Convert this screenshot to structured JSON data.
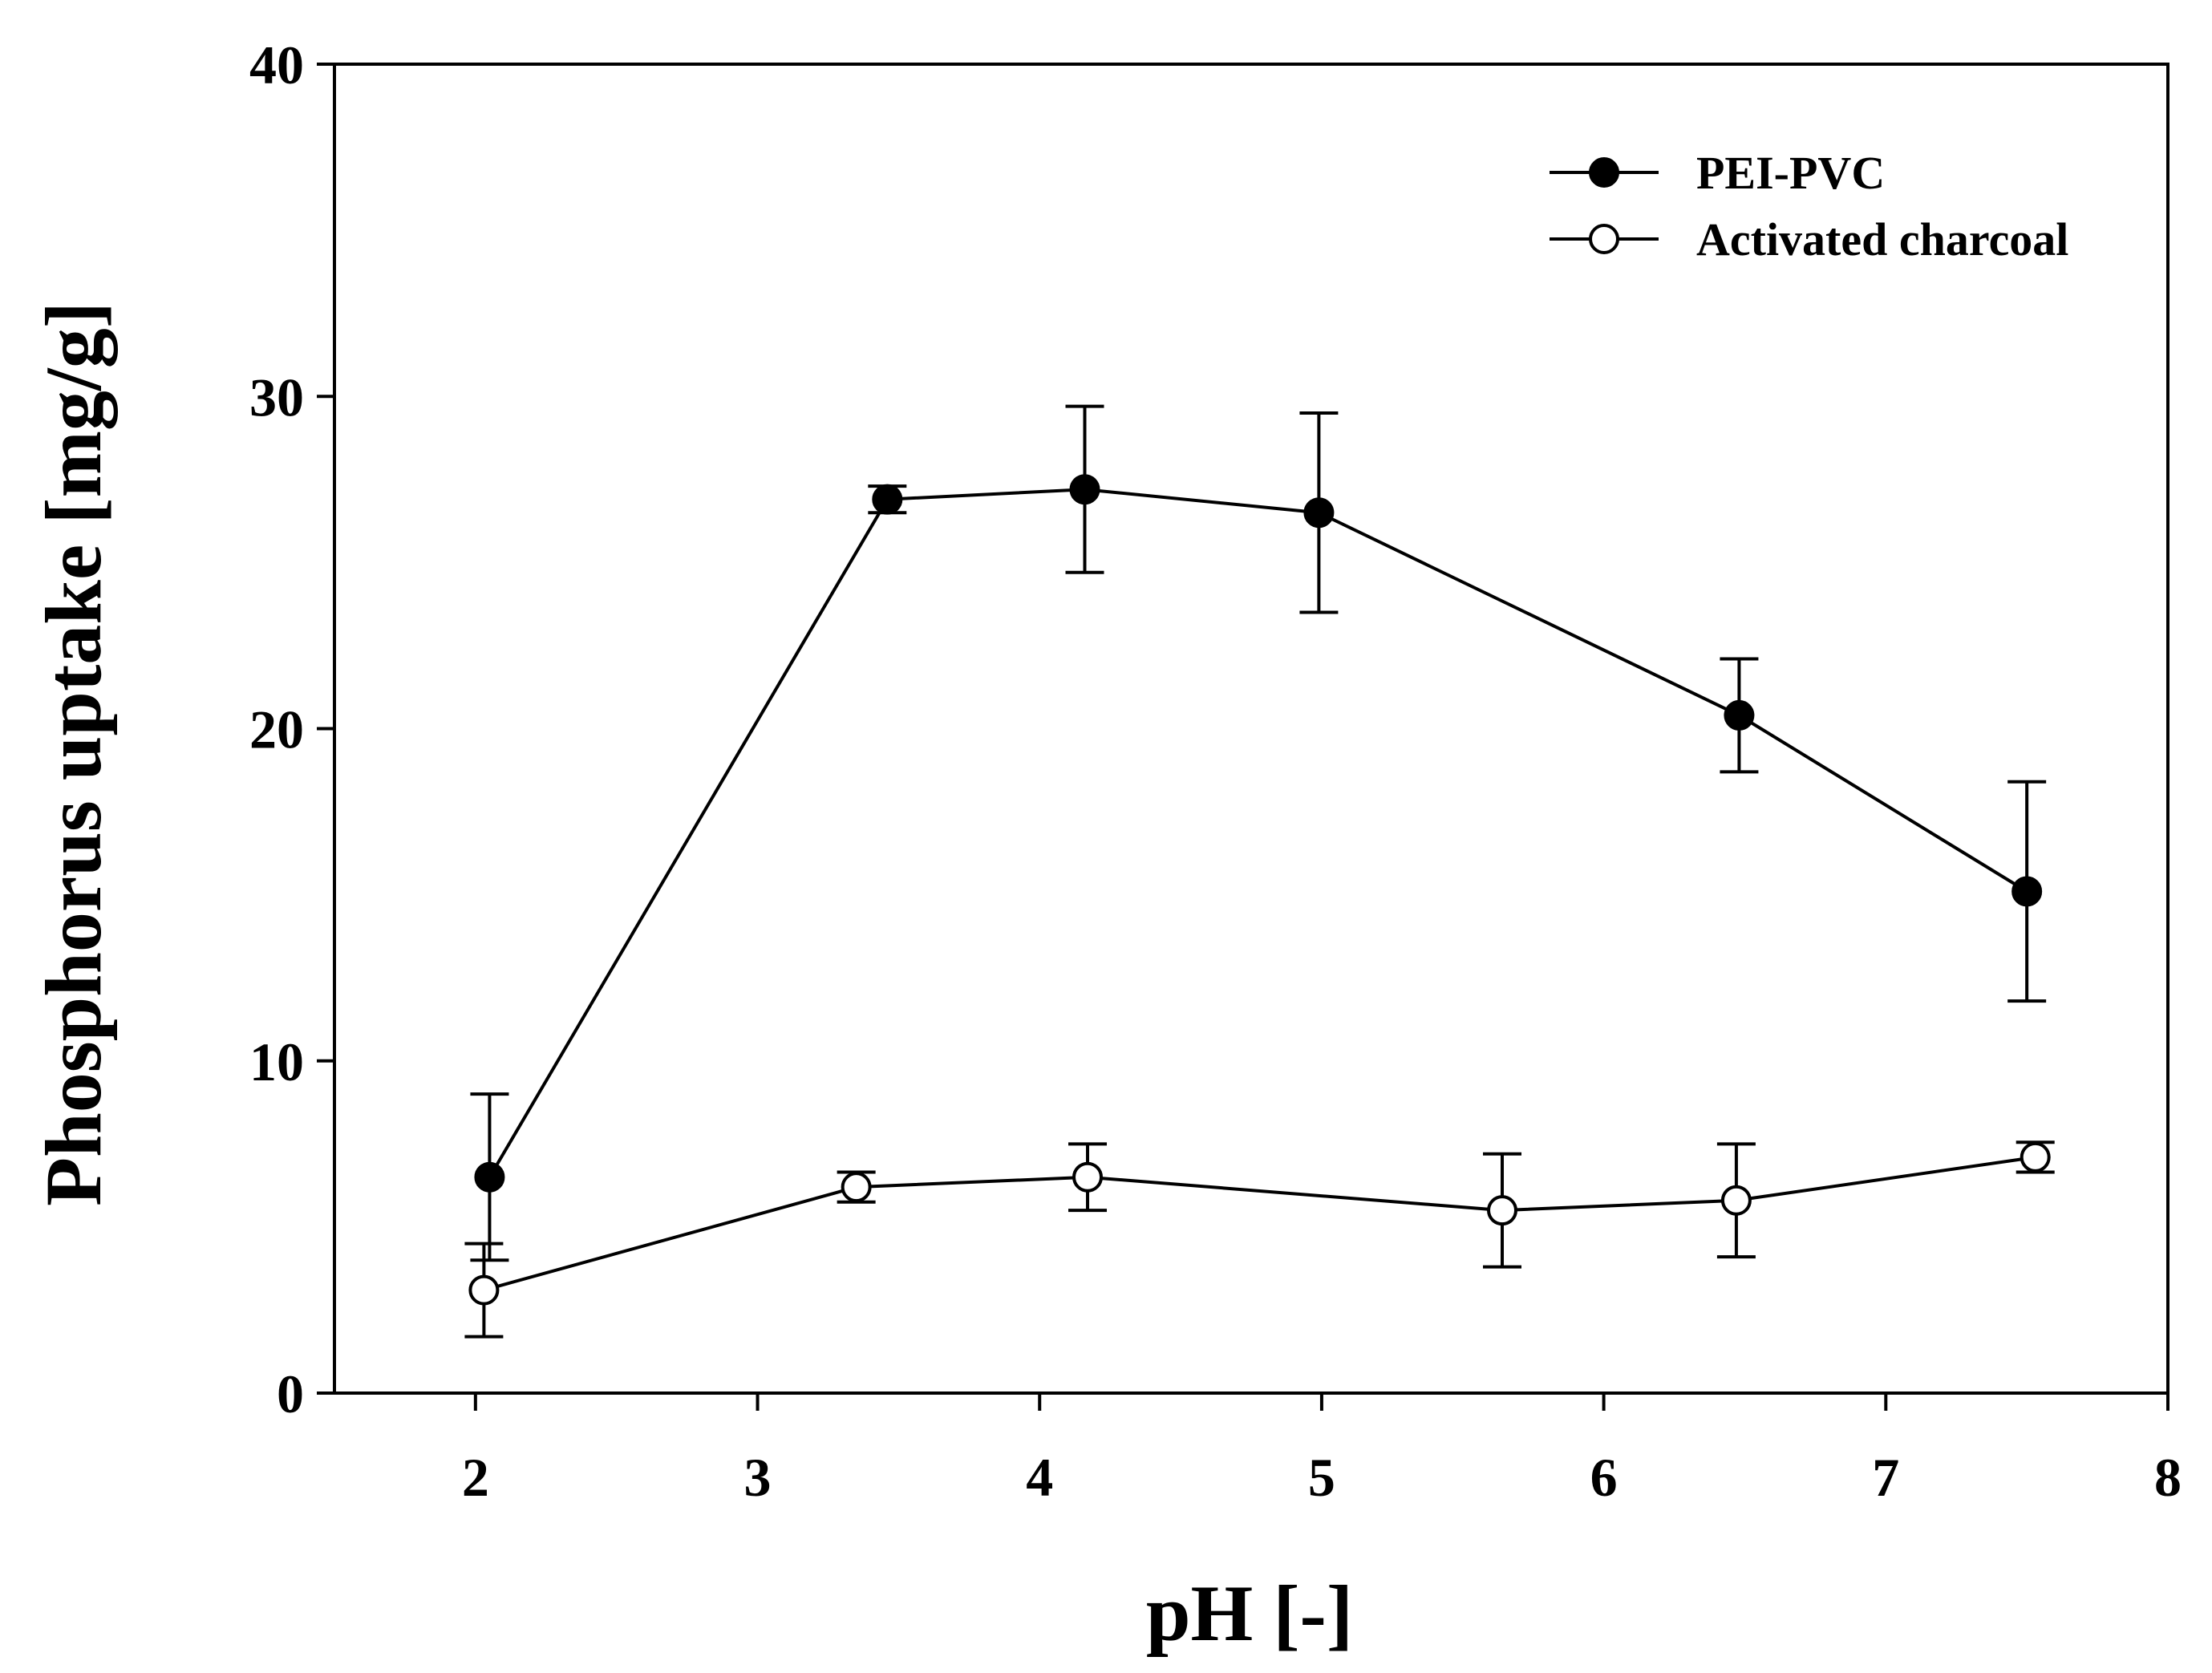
{
  "chart_data": {
    "type": "line",
    "title": "",
    "xlabel": "pH [-]",
    "ylabel": "Phosphorus uptake [mg/g]",
    "xlim": [
      1.5,
      8
    ],
    "ylim": [
      0,
      40
    ],
    "xticks": [
      2,
      3,
      4,
      5,
      6,
      7,
      8
    ],
    "yticks": [
      0,
      10,
      20,
      30,
      40
    ],
    "grid": false,
    "legend_position": "top-right",
    "series": [
      {
        "name": "PEI-PVC",
        "marker": "filled-circle",
        "color": "#000000",
        "x": [
          2.05,
          3.46,
          4.16,
          4.99,
          6.48,
          7.5
        ],
        "y": [
          6.5,
          26.9,
          27.2,
          26.5,
          20.4,
          15.1
        ],
        "err": [
          2.5,
          0.4,
          2.5,
          3.0,
          1.7,
          3.3
        ]
      },
      {
        "name": "Activated charcoal",
        "marker": "open-circle",
        "color": "#000000",
        "x": [
          2.03,
          3.35,
          4.17,
          5.64,
          6.47,
          7.53
        ],
        "y": [
          3.1,
          6.2,
          6.5,
          5.5,
          5.8,
          7.1
        ],
        "err": [
          1.4,
          0.45,
          1.0,
          1.7,
          1.7,
          0.45
        ]
      }
    ]
  }
}
